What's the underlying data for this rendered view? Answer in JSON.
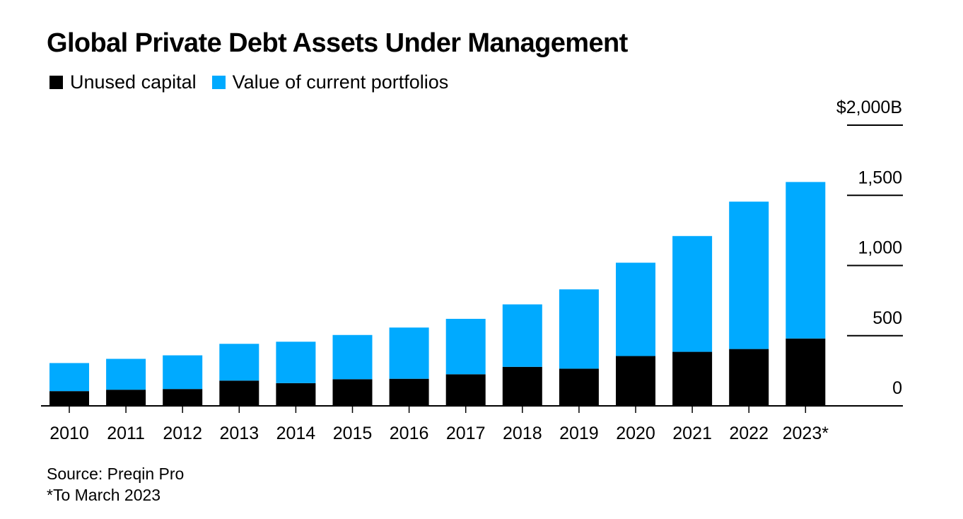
{
  "title": "Global Private Debt Assets Under Management",
  "legend": [
    {
      "label": "Unused capital",
      "color": "#000000"
    },
    {
      "label": "Value of current portfolios",
      "color": "#00aaff"
    }
  ],
  "source": "Source: Preqin Pro",
  "footnote": "*To March 2023",
  "chart_data": {
    "type": "bar",
    "stacked": true,
    "title": "Global Private Debt Assets Under Management",
    "xlabel": "",
    "ylabel": "",
    "categories": [
      "2010",
      "2011",
      "2012",
      "2013",
      "2014",
      "2015",
      "2016",
      "2017",
      "2018",
      "2019",
      "2020",
      "2021",
      "2022",
      "2023*"
    ],
    "series": [
      {
        "name": "Unused capital",
        "color": "#000000",
        "values": [
          105,
          115,
          120,
          180,
          162,
          190,
          193,
          225,
          278,
          265,
          355,
          385,
          405,
          480
        ]
      },
      {
        "name": "Value of current portfolios",
        "color": "#00aaff",
        "values": [
          200,
          220,
          240,
          262,
          295,
          315,
          365,
          395,
          445,
          565,
          665,
          825,
          1050,
          1115
        ]
      }
    ],
    "ylim": [
      0,
      2000
    ],
    "y_ticks": [
      0,
      500,
      1000,
      1500,
      2000
    ],
    "y_tick_labels": [
      "0",
      "500",
      "1,000",
      "1,500",
      "$2,000B"
    ],
    "y_axis_side": "right",
    "grid": false,
    "legend_position": "top-left"
  }
}
